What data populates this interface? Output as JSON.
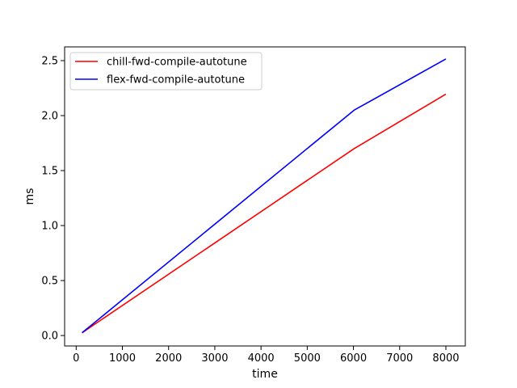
{
  "chart_data": {
    "type": "line",
    "title": "",
    "xlabel": "time",
    "ylabel": "ms",
    "xlim": [
      -250,
      8420
    ],
    "ylim": [
      -0.095,
      2.625
    ],
    "xticks": [
      0,
      1000,
      2000,
      3000,
      4000,
      5000,
      6000,
      7000,
      8000
    ],
    "xtick_labels": [
      "0",
      "1000",
      "2000",
      "3000",
      "4000",
      "5000",
      "6000",
      "7000",
      "8000"
    ],
    "yticks": [
      0.0,
      0.5,
      1.0,
      1.5,
      2.0,
      2.5
    ],
    "ytick_labels": [
      "0.0",
      "0.5",
      "1.0",
      "1.5",
      "2.0",
      "2.5"
    ],
    "grid": false,
    "legend_position": "top-left",
    "series": [
      {
        "name": "chill-fwd-compile-autotune",
        "color": "#ff0000",
        "x": [
          128,
          6016,
          8000
        ],
        "y": [
          0.025,
          1.7,
          2.195
        ]
      },
      {
        "name": "flex-fwd-compile-autotune",
        "color": "#0000ff",
        "x": [
          128,
          6016,
          8000
        ],
        "y": [
          0.025,
          2.05,
          2.515
        ]
      }
    ]
  }
}
